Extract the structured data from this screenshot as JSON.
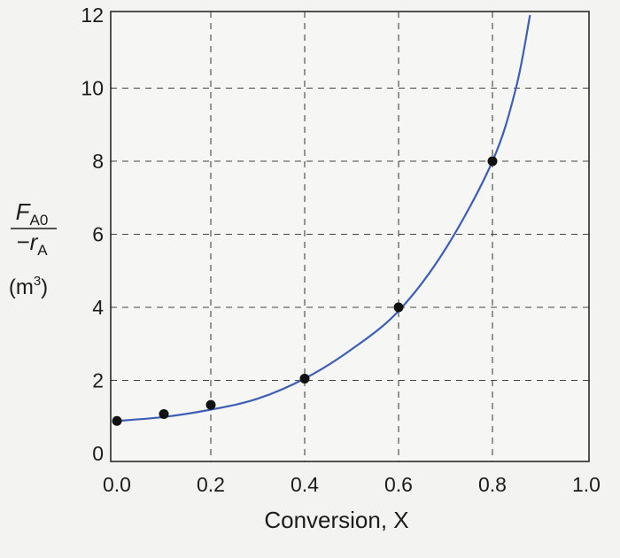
{
  "chart_data": {
    "type": "line",
    "title": "",
    "xlabel": "Conversion, X",
    "ylabel": {
      "numerator": "F",
      "numerator_sub": "A0",
      "denominator": "−r",
      "denominator_sub": "A",
      "unit_open": "(m",
      "unit_sup": "3",
      "unit_close": ")"
    },
    "xlim": [
      0.0,
      1.0
    ],
    "ylim": [
      0,
      12
    ],
    "x_tick_labels": [
      "0.0",
      "0.2",
      "0.4",
      "0.6",
      "0.8",
      "1.0"
    ],
    "x_ticks": [
      0.0,
      0.2,
      0.4,
      0.6,
      0.8,
      1.0
    ],
    "y_tick_labels": [
      "0",
      "2",
      "4",
      "6",
      "8",
      "10",
      "12"
    ],
    "y_ticks": [
      0,
      2,
      4,
      6,
      8,
      10,
      12
    ],
    "grid": true,
    "grid_style": "dashed",
    "series": [
      {
        "kind": "points",
        "color": "#111111",
        "x": [
          0.0,
          0.1,
          0.2,
          0.4,
          0.6,
          0.8
        ],
        "y": [
          0.89,
          1.08,
          1.33,
          2.05,
          4.0,
          8.0
        ]
      },
      {
        "kind": "fitted-curve",
        "color": "#3f5fb5",
        "x": [
          0.0,
          0.1,
          0.2,
          0.3,
          0.4,
          0.5,
          0.6,
          0.7,
          0.8,
          0.85,
          0.88
        ],
        "y": [
          0.89,
          1.0,
          1.2,
          1.5,
          2.05,
          2.85,
          3.9,
          5.6,
          8.0,
          10.0,
          12.0
        ]
      }
    ]
  }
}
